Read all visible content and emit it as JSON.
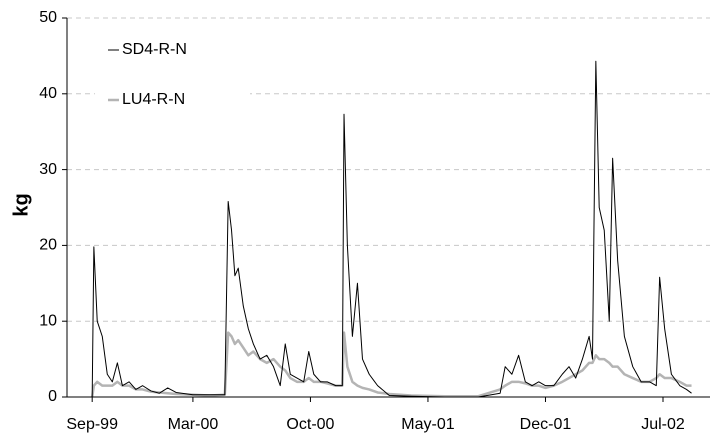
{
  "chart_data": {
    "type": "line",
    "ylabel": "kg",
    "x": [
      0,
      0.1,
      0.3,
      0.6,
      0.9,
      1.2,
      1.5,
      1.8,
      2.2,
      2.6,
      3,
      3.5,
      4,
      4.5,
      5,
      6,
      7,
      7.9,
      8.1,
      8.3,
      8.5,
      8.7,
      9,
      9.3,
      9.6,
      10,
      10.4,
      10.8,
      11.2,
      11.5,
      11.8,
      12.2,
      12.6,
      12.9,
      13.2,
      13.6,
      14,
      14.5,
      14.9,
      15.0,
      15.2,
      15.5,
      15.8,
      16.1,
      16.5,
      17,
      17.7,
      19,
      21,
      23,
      24.3,
      24.6,
      25,
      25.4,
      25.8,
      26.2,
      26.6,
      27,
      27.5,
      28,
      28.4,
      28.8,
      29.2,
      29.6,
      29.8,
      30,
      30.2,
      30.5,
      30.8,
      31,
      31.3,
      31.7,
      32.2,
      32.7,
      33.2,
      33.6,
      33.8,
      34.1,
      34.5,
      35,
      35.4,
      35.7
    ],
    "series": [
      {
        "name": "LU4-R-N",
        "color": "#b4b4b4",
        "width": 2.5,
        "values": [
          0,
          1.5,
          2,
          1.5,
          1.5,
          1.5,
          2,
          1.5,
          1.5,
          1,
          1,
          0.7,
          0.6,
          0.5,
          0.4,
          0.3,
          0.2,
          0.3,
          8.5,
          8,
          7,
          7.5,
          6.5,
          5.5,
          6,
          5,
          4.5,
          5,
          4,
          3.5,
          2.5,
          2,
          2,
          2.5,
          2,
          2,
          1.8,
          1.5,
          1.5,
          8.5,
          4,
          2,
          1.5,
          1.2,
          1,
          0.6,
          0.4,
          0.2,
          0.1,
          0.1,
          1,
          1.5,
          2,
          2,
          1.8,
          1.5,
          1.5,
          1.2,
          1.5,
          2,
          2.5,
          3,
          3.5,
          4.5,
          4.5,
          5.5,
          5,
          5,
          4.5,
          4,
          4,
          3,
          2.5,
          2,
          2,
          2.5,
          3,
          2.5,
          2.5,
          2,
          1.5,
          1.5
        ]
      },
      {
        "name": "SD4-R-N",
        "color": "#000000",
        "width": 1,
        "values": [
          0,
          19.8,
          10,
          8,
          3,
          2,
          4.5,
          1.5,
          2,
          1,
          1.5,
          0.8,
          0.5,
          1.2,
          0.6,
          0.3,
          0.3,
          0.3,
          25.8,
          22,
          16,
          17,
          12,
          9,
          7,
          5,
          5.5,
          4,
          1.5,
          7,
          3,
          2.5,
          2,
          6,
          3,
          2,
          2,
          1.5,
          1.5,
          37.3,
          20,
          8,
          15,
          5,
          3,
          1.5,
          0.2,
          0.1,
          0,
          0,
          0.5,
          4,
          3,
          5.5,
          2,
          1.5,
          2,
          1.5,
          1.5,
          3,
          4,
          2.5,
          5,
          8,
          5,
          44.3,
          25,
          22,
          10,
          31.5,
          18,
          8,
          4,
          2,
          2,
          1.5,
          15.8,
          9,
          3,
          1.5,
          1,
          0.5
        ]
      }
    ],
    "xlim": [
      -1.5,
      36.8
    ],
    "xticks": [
      {
        "value": 0,
        "label": "Sep-99"
      },
      {
        "value": 6,
        "label": "Mar-00"
      },
      {
        "value": 13,
        "label": "Oct-00"
      },
      {
        "value": 20,
        "label": "May-01"
      },
      {
        "value": 27,
        "label": "Dec-01"
      },
      {
        "value": 34,
        "label": "Jul-02"
      }
    ],
    "ylim": [
      0,
      50
    ],
    "yticks": [
      0,
      10,
      20,
      30,
      40,
      50
    ],
    "grid": true,
    "legend": "upper-left"
  }
}
